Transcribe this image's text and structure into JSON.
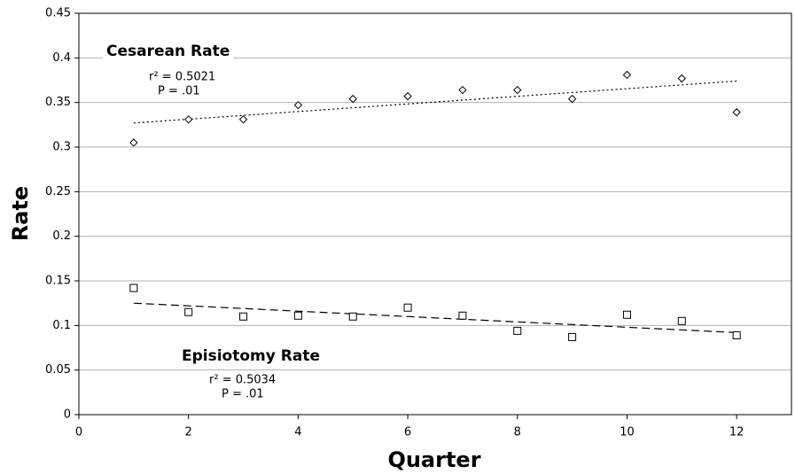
{
  "chart_data": {
    "type": "scatter",
    "x_label": "Quarter",
    "y_label": "Rate",
    "xlim": [
      0,
      13
    ],
    "xticks": [
      0,
      2,
      4,
      6,
      8,
      10,
      12
    ],
    "ylim": [
      0,
      0.45
    ],
    "yticks": [
      0,
      0.05,
      0.1,
      0.15,
      0.2,
      0.25,
      0.3,
      0.35,
      0.4,
      0.45
    ],
    "grid": true,
    "series": [
      {
        "name": "Cesarean Rate",
        "color": "#000000",
        "marker": "diamond",
        "x": [
          1,
          2,
          3,
          4,
          5,
          6,
          7,
          8,
          9,
          10,
          11,
          12
        ],
        "values": [
          0.305,
          0.331,
          0.331,
          0.347,
          0.354,
          0.357,
          0.364,
          0.364,
          0.354,
          0.381,
          0.377,
          0.339
        ],
        "r_squared": "r² = 0.5021",
        "p_value": "P = .01",
        "trend": {
          "style": "dotted",
          "x": [
            1,
            12
          ],
          "values": [
            0.327,
            0.374
          ]
        }
      },
      {
        "name": "Episiotomy Rate",
        "color": "#000000",
        "marker": "square",
        "x": [
          1,
          2,
          3,
          4,
          5,
          6,
          7,
          8,
          9,
          10,
          11,
          12
        ],
        "values": [
          0.142,
          0.115,
          0.11,
          0.111,
          0.11,
          0.12,
          0.111,
          0.094,
          0.087,
          0.112,
          0.105,
          0.089
        ],
        "r_squared": "r² = 0.5034",
        "p_value": "P = .01",
        "trend": {
          "style": "dashed",
          "x": [
            1,
            12
          ],
          "values": [
            0.125,
            0.092
          ]
        }
      }
    ]
  }
}
